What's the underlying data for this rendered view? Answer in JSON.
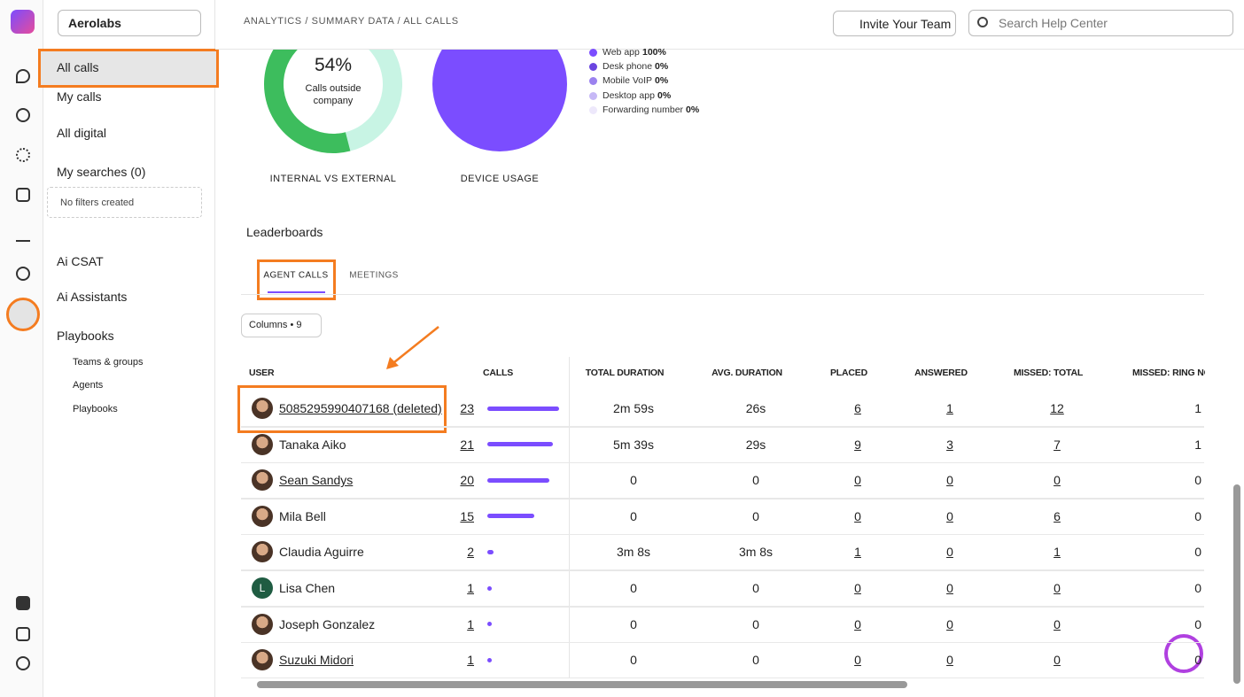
{
  "workspace": "Aerolabs",
  "breadcrumb": "ANALYTICS / SUMMARY DATA / ALL CALLS",
  "invite_button": "Invite Your Team",
  "search_placeholder": "Search Help Center",
  "nav": [
    "All calls",
    "My calls",
    "All digital"
  ],
  "my_searches": "My searches (0)",
  "no_filters": "No filters created",
  "nav2": [
    "Ai CSAT",
    "Ai Assistants",
    "Playbooks"
  ],
  "playbooks_sub": [
    "Teams & groups",
    "Agents",
    "Playbooks"
  ],
  "donut": {
    "value": 54,
    "value_label": "54%",
    "caption": "Calls outside company",
    "title": "INTERNAL VS EXTERNAL",
    "color": "#3dbd5d",
    "rest_color": "#c8f4e4"
  },
  "device_usage": {
    "title": "DEVICE USAGE",
    "items": [
      {
        "name": "Web app",
        "value": 100,
        "label": "100%",
        "color": "#7b4dff"
      },
      {
        "name": "Desk phone",
        "value": 0,
        "label": "0%",
        "color": "#6a45e0"
      },
      {
        "name": "Mobile VoIP",
        "value": 0,
        "label": "0%",
        "color": "#9b82ef"
      },
      {
        "name": "Desktop app",
        "value": 0,
        "label": "0%",
        "color": "#c6b8f6"
      },
      {
        "name": "Forwarding number",
        "value": 0,
        "label": "0%",
        "color": "#ede8fb"
      }
    ]
  },
  "leaderboards": "Leaderboards",
  "tabs": [
    "AGENT CALLS",
    "MEETINGS"
  ],
  "columns_button": "Columns • 9",
  "table": {
    "headers": [
      "USER",
      "CALLS",
      "TOTAL DURATION",
      "AVG. DURATION",
      "PLACED",
      "ANSWERED",
      "MISSED: TOTAL",
      "MISSED: RING NO"
    ],
    "rows": [
      {
        "user": "5085295990407168 (deleted)",
        "linked": true,
        "calls": 23,
        "total_duration": "2m 59s",
        "avg_duration": "26s",
        "placed": 6,
        "answered": 1,
        "missed_total": 12,
        "missed_ring": 1
      },
      {
        "user": "Tanaka Aiko",
        "calls": 21,
        "total_duration": "5m 39s",
        "avg_duration": "29s",
        "placed": 9,
        "answered": 3,
        "missed_total": 7,
        "missed_ring": 1
      },
      {
        "user": "Sean Sandys",
        "linked": true,
        "calls": 20,
        "total_duration": "0",
        "avg_duration": "0",
        "placed": 0,
        "answered": 0,
        "missed_total": 0,
        "missed_ring": 0
      },
      {
        "user": "Mila Bell",
        "calls": 15,
        "total_duration": "0",
        "avg_duration": "0",
        "placed": 0,
        "answered": 0,
        "missed_total": 6,
        "missed_ring": 0
      },
      {
        "user": "Claudia Aguirre",
        "calls": 2,
        "total_duration": "3m 8s",
        "avg_duration": "3m 8s",
        "placed": 1,
        "answered": 0,
        "missed_total": 1,
        "missed_ring": 0
      },
      {
        "user": "Lisa Chen",
        "avatar_text": "L",
        "calls": 1,
        "total_duration": "0",
        "avg_duration": "0",
        "placed": 0,
        "answered": 0,
        "missed_total": 0,
        "missed_ring": 0
      },
      {
        "user": "Joseph Gonzalez",
        "calls": 1,
        "total_duration": "0",
        "avg_duration": "0",
        "placed": 0,
        "answered": 0,
        "missed_total": 0,
        "missed_ring": 0
      },
      {
        "user": "Suzuki Midori",
        "linked": true,
        "calls": 1,
        "total_duration": "0",
        "avg_duration": "0",
        "placed": 0,
        "answered": 0,
        "missed_total": 0,
        "missed_ring": 0
      }
    ]
  }
}
